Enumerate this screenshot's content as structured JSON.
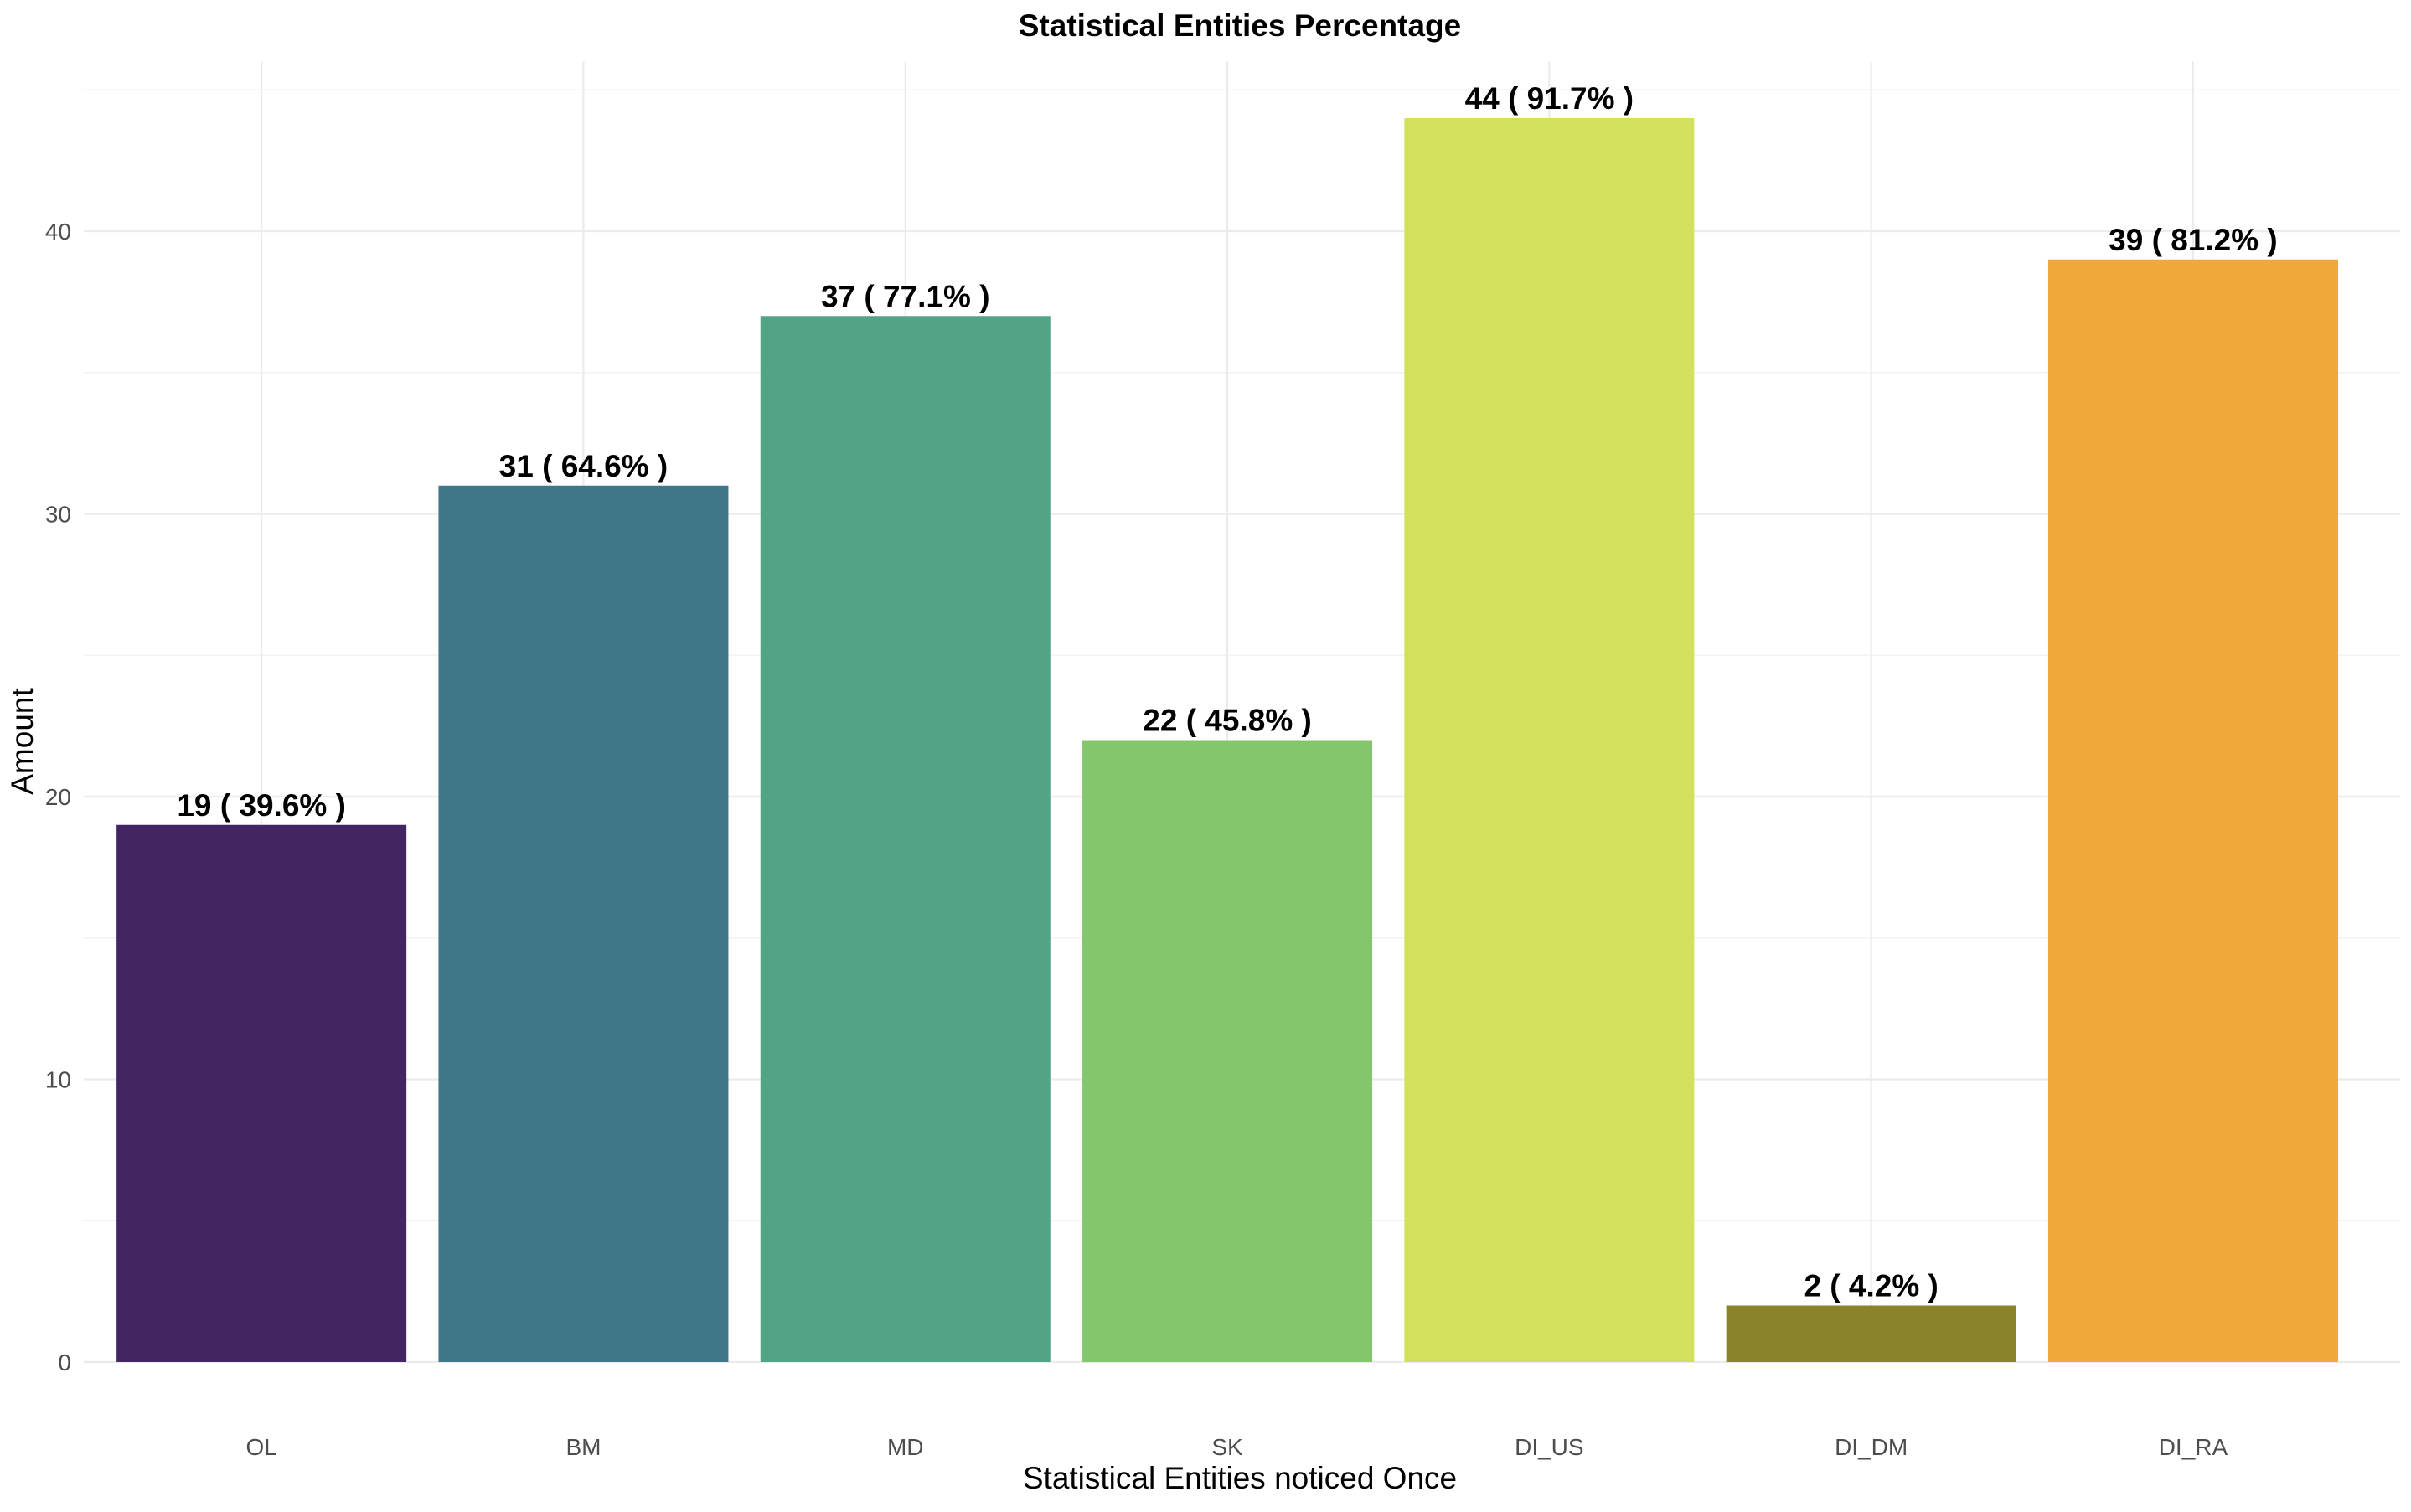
{
  "chart_data": {
    "type": "bar",
    "title": "Statistical Entities Percentage",
    "xlabel": "Statistical Entities noticed Once",
    "ylabel": "Amount",
    "categories": [
      "OL",
      "BM",
      "MD",
      "SK",
      "DI_US",
      "DI_DM",
      "DI_RA"
    ],
    "values": [
      19,
      31,
      37,
      22,
      44,
      2,
      39
    ],
    "labels": [
      "19 ( 39.6% )",
      "31 ( 64.6% )",
      "37 ( 77.1% )",
      "22 ( 45.8% )",
      "44 ( 91.7% )",
      "2 ( 4.2% )",
      "39 ( 81.2% )"
    ],
    "colors": [
      "#432562",
      "#3f7688",
      "#52a486",
      "#84c66b",
      "#d3e05d",
      "#8b8329",
      "#f0a83b"
    ],
    "y_ticks": [
      0,
      10,
      20,
      30,
      40
    ],
    "ylim": [
      0,
      46
    ],
    "grid": true,
    "legend": "none"
  }
}
